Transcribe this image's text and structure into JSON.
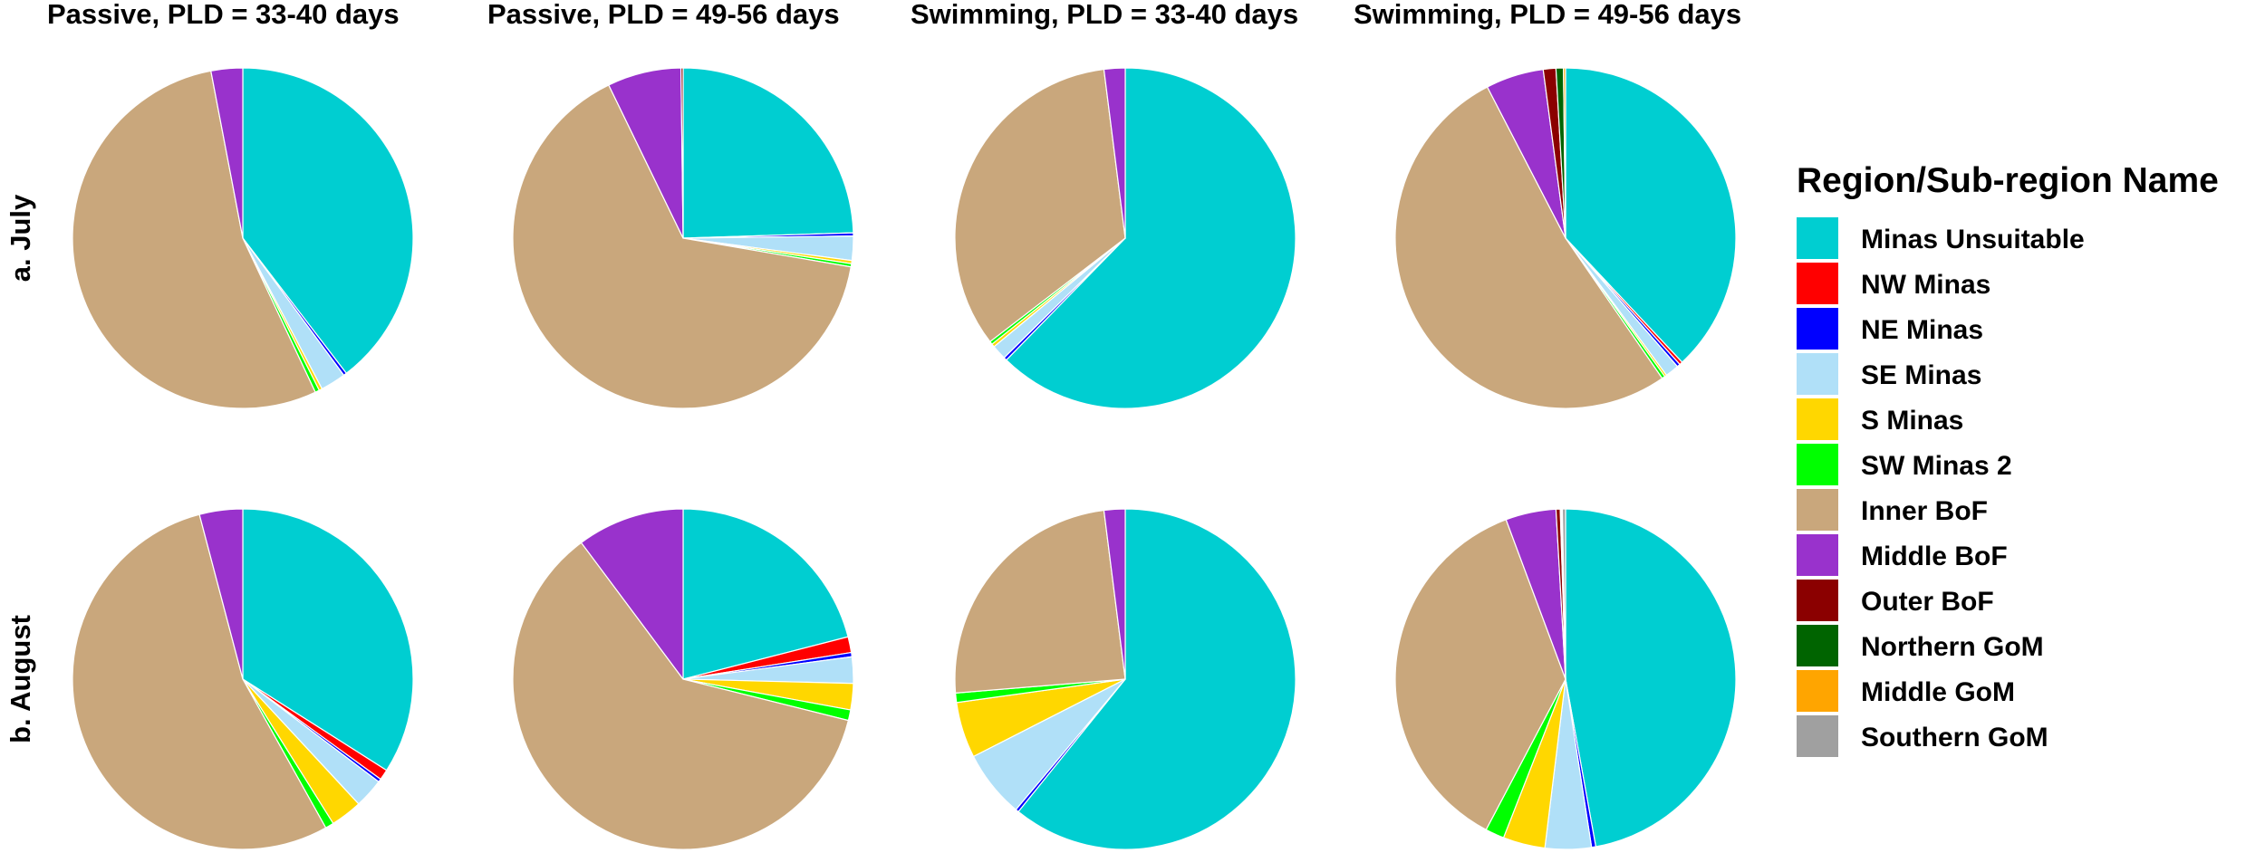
{
  "chart_data": {
    "type": "pie",
    "columns": [
      "Passive, PLD = 33-40 days",
      "Passive, PLD = 49-56 days",
      "Swimming, PLD = 33-40 days",
      "Swimming, PLD = 49-56 days"
    ],
    "rows": [
      "a. July",
      "b. August"
    ],
    "categories": [
      "Minas Unsuitable",
      "NW Minas",
      "NE Minas",
      "SE Minas",
      "S Minas",
      "SW Minas 2",
      "Inner BoF",
      "Middle BoF",
      "Outer BoF",
      "Northern GoM",
      "Middle GoM",
      "Southern GoM"
    ],
    "colors": [
      "#00CED1",
      "#FF0000",
      "#0000FF",
      "#B0E0F8",
      "#FFD700",
      "#00FF00",
      "#C9A77C",
      "#9932CC",
      "#8B0000",
      "#006400",
      "#FFA500",
      "#A0A0A0"
    ],
    "legend": {
      "title": "Region/Sub-region Name",
      "position": "right"
    },
    "panels": [
      {
        "row": 0,
        "col": 0,
        "values": [
          39.6,
          0,
          0.3,
          2.4,
          0.3,
          0.4,
          54.0,
          3.0,
          0,
          0,
          0,
          0
        ]
      },
      {
        "row": 0,
        "col": 1,
        "values": [
          24.5,
          0,
          0.3,
          2.3,
          0.3,
          0.3,
          65.1,
          7.0,
          0.2,
          0,
          0,
          0
        ]
      },
      {
        "row": 0,
        "col": 2,
        "values": [
          62.3,
          0,
          0.3,
          1.4,
          0.3,
          0.3,
          33.4,
          2.0,
          0,
          0,
          0,
          0
        ]
      },
      {
        "row": 0,
        "col": 3,
        "values": [
          38.0,
          0.3,
          0.3,
          1.3,
          0.2,
          0.3,
          52.0,
          5.5,
          1.2,
          0.7,
          0.2,
          0
        ]
      },
      {
        "row": 1,
        "col": 0,
        "values": [
          34.0,
          1.0,
          0.3,
          2.8,
          3.0,
          0.8,
          54.0,
          4.1,
          0,
          0,
          0,
          0
        ]
      },
      {
        "row": 1,
        "col": 1,
        "values": [
          21.0,
          1.5,
          0.4,
          2.5,
          2.5,
          1.0,
          60.9,
          10.2,
          0,
          0,
          0,
          0
        ]
      },
      {
        "row": 1,
        "col": 2,
        "values": [
          60.8,
          0,
          0.3,
          6.4,
          5.3,
          0.9,
          24.3,
          2.0,
          0,
          0,
          0,
          0
        ]
      },
      {
        "row": 1,
        "col": 3,
        "values": [
          47.3,
          0,
          0.4,
          4.4,
          4.0,
          1.8,
          36.7,
          4.8,
          0.4,
          0.1,
          0.1,
          0.3
        ]
      }
    ]
  }
}
